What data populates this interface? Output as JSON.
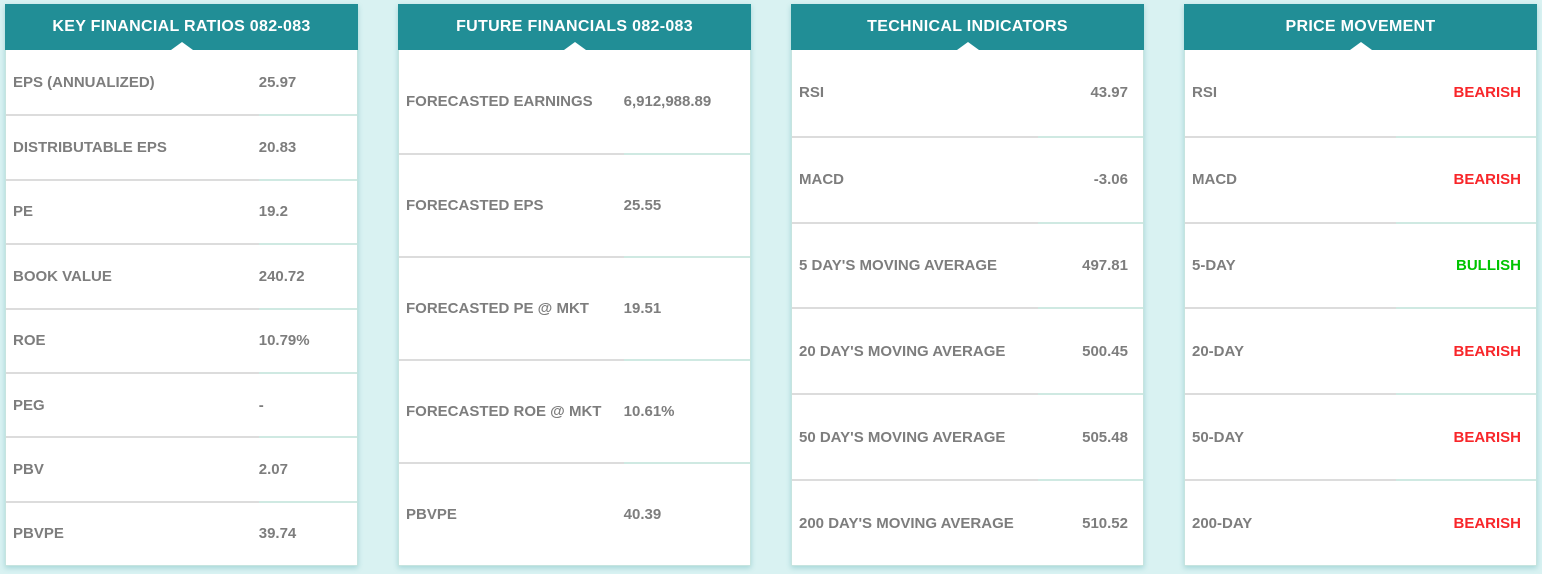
{
  "colors": {
    "page_background": "#d9f2f2",
    "header_background": "#218e96",
    "header_text": "#ffffff",
    "row_text": "#7d7d7d",
    "bearish": "#f8262a",
    "bullish": "#00c400"
  },
  "panels": [
    {
      "id": "key-financial-ratios",
      "title": "KEY FINANCIAL RATIOS 082-083",
      "value_align": "left",
      "rows": [
        {
          "label": "EPS (ANNUALIZED)",
          "value": "25.97"
        },
        {
          "label": "DISTRIBUTABLE EPS",
          "value": "20.83"
        },
        {
          "label": "PE",
          "value": "19.2"
        },
        {
          "label": "BOOK VALUE",
          "value": "240.72"
        },
        {
          "label": "ROE",
          "value": "10.79%"
        },
        {
          "label": "PEG",
          "value": "-"
        },
        {
          "label": "PBV",
          "value": "2.07"
        },
        {
          "label": "PBVPE",
          "value": "39.74"
        }
      ]
    },
    {
      "id": "future-financials",
      "title": "FUTURE FINANCIALS 082-083",
      "value_align": "left",
      "rows": [
        {
          "label": "FORECASTED EARNINGS",
          "value": "6,912,988.89"
        },
        {
          "label": "FORECASTED EPS",
          "value": "25.55"
        },
        {
          "label": "FORECASTED PE @ MKT",
          "value": "19.51"
        },
        {
          "label": "FORECASTED ROE @ MKT",
          "value": "10.61%"
        },
        {
          "label": "PBVPE",
          "value": "40.39"
        }
      ]
    },
    {
      "id": "technical-indicators",
      "title": "TECHNICAL INDICATORS",
      "value_align": "right",
      "rows": [
        {
          "label": "RSI",
          "value": "43.97"
        },
        {
          "label": "MACD",
          "value": "-3.06"
        },
        {
          "label": "5 DAY'S MOVING AVERAGE",
          "value": "497.81"
        },
        {
          "label": "20 DAY'S MOVING AVERAGE",
          "value": "500.45"
        },
        {
          "label": "50 DAY'S MOVING AVERAGE",
          "value": "505.48"
        },
        {
          "label": "200 DAY'S MOVING AVERAGE",
          "value": "510.52"
        }
      ]
    },
    {
      "id": "price-movement",
      "title": "PRICE MOVEMENT",
      "value_align": "right",
      "rows": [
        {
          "label": "RSI",
          "value": "BEARISH",
          "tone": "bearish"
        },
        {
          "label": "MACD",
          "value": "BEARISH",
          "tone": "bearish"
        },
        {
          "label": "5-DAY",
          "value": "BULLISH",
          "tone": "bullish"
        },
        {
          "label": "20-DAY",
          "value": "BEARISH",
          "tone": "bearish"
        },
        {
          "label": "50-DAY",
          "value": "BEARISH",
          "tone": "bearish"
        },
        {
          "label": "200-DAY",
          "value": "BEARISH",
          "tone": "bearish"
        }
      ]
    }
  ]
}
